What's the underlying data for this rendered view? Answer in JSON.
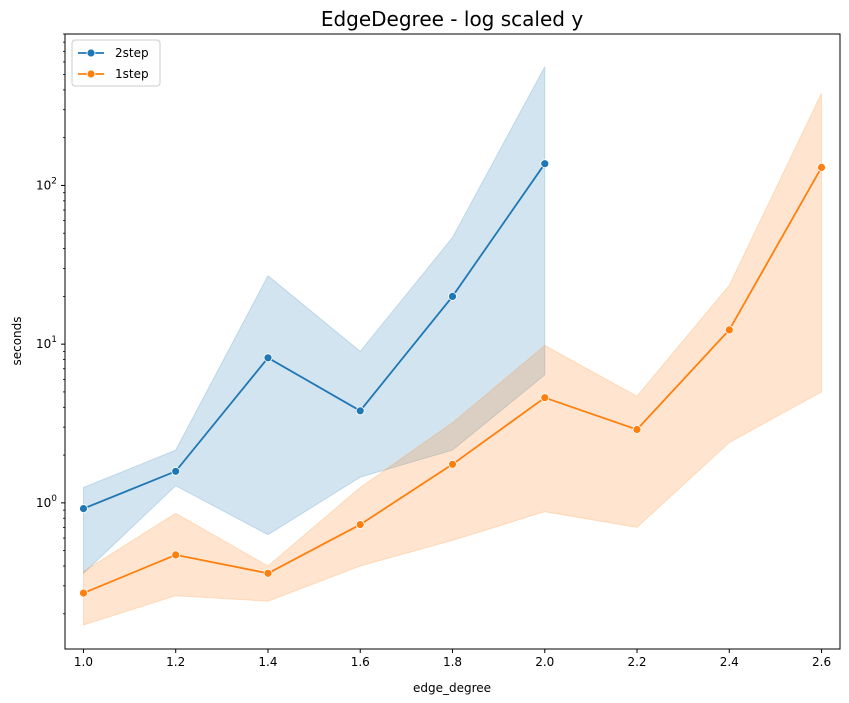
{
  "chart_data": {
    "type": "line",
    "title": "EdgeDegree - log scaled y",
    "xlabel": "edge_degree",
    "ylabel": "seconds",
    "yscale": "log",
    "xlim": [
      0.96,
      2.64
    ],
    "ylim": [
      0.12,
      900
    ],
    "xticks": [
      "1.0",
      "1.2",
      "1.4",
      "1.6",
      "1.8",
      "2.0",
      "2.2",
      "2.4",
      "2.6"
    ],
    "xtick_values": [
      1.0,
      1.2,
      1.4,
      1.6,
      1.8,
      2.0,
      2.2,
      2.4,
      2.6
    ],
    "yticks": [
      {
        "value": 1,
        "base": "10",
        "exp": "0"
      },
      {
        "value": 10,
        "base": "10",
        "exp": "1"
      },
      {
        "value": 100,
        "base": "10",
        "exp": "2"
      }
    ],
    "grid": false,
    "legend_position": "top-left",
    "series": [
      {
        "name": "2step",
        "color": "#1f77b4",
        "x": [
          1.0,
          1.2,
          1.4,
          1.6,
          1.8,
          2.0
        ],
        "values": [
          0.92,
          1.58,
          8.2,
          3.8,
          20,
          137
        ],
        "ci_low": [
          0.36,
          1.28,
          0.63,
          1.45,
          2.15,
          6.4
        ],
        "ci_high": [
          1.25,
          2.15,
          27,
          9,
          47,
          560
        ]
      },
      {
        "name": "1step",
        "color": "#ff7f0e",
        "x": [
          1.0,
          1.2,
          1.4,
          1.6,
          1.8,
          2.0,
          2.2,
          2.4,
          2.6
        ],
        "values": [
          0.27,
          0.47,
          0.36,
          0.73,
          1.75,
          4.6,
          2.9,
          12.3,
          130
        ],
        "ci_low": [
          0.17,
          0.26,
          0.24,
          0.4,
          0.58,
          0.88,
          0.7,
          2.4,
          5
        ],
        "ci_high": [
          0.37,
          0.86,
          0.4,
          1.25,
          3.2,
          9.8,
          4.7,
          23.5,
          380
        ]
      }
    ]
  }
}
